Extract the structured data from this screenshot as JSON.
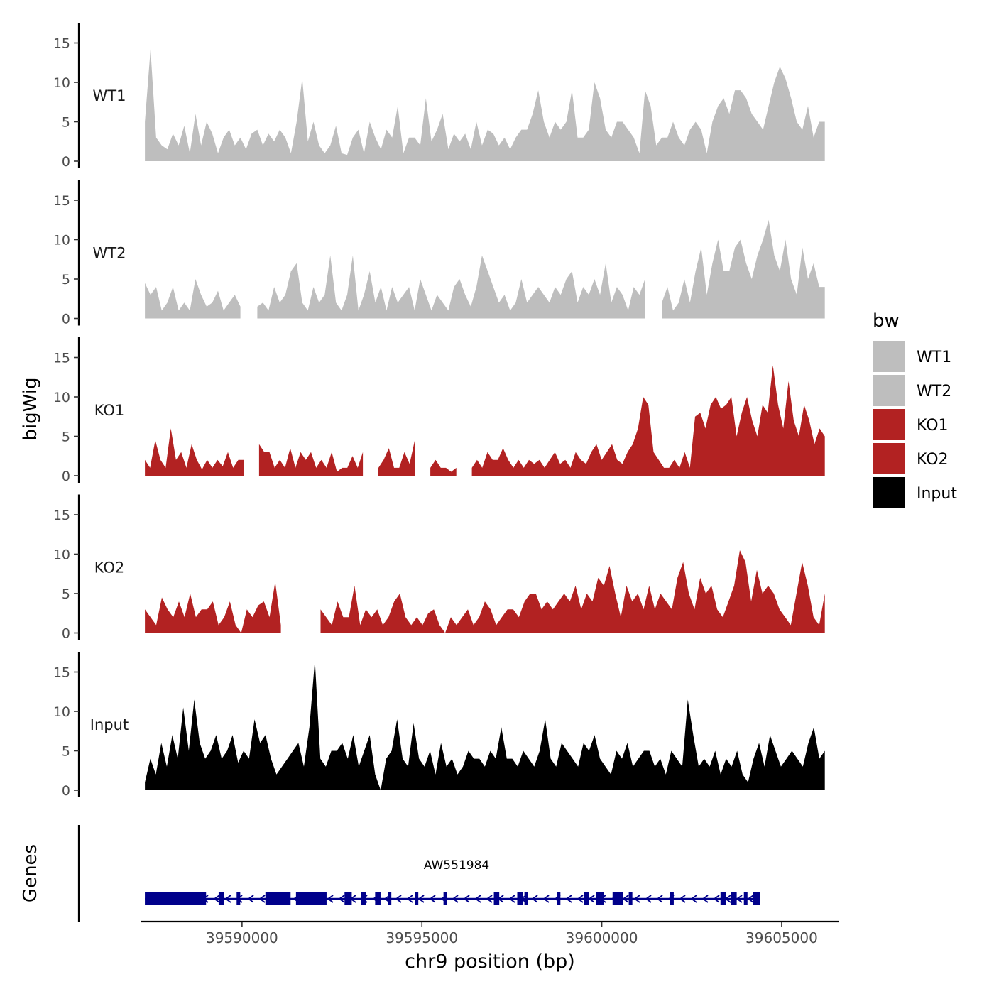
{
  "chart_data": {
    "type": "area",
    "ylabel": "bigWig",
    "xlabel": "chr9 position (bp)",
    "ylim": [
      0,
      17.5
    ],
    "yticks": [
      0,
      5,
      10,
      15
    ],
    "xlim": [
      39587200,
      39606600
    ],
    "xticks": [
      39590000,
      39595000,
      39600000,
      39605000
    ],
    "xtick_labels": [
      "39590000",
      "39595000",
      "39600000",
      "39605000"
    ],
    "track_start": 39587300,
    "track_end": 39606200,
    "legend": {
      "title": "bw",
      "items": [
        {
          "label": "WT1",
          "color": "#bebebe"
        },
        {
          "label": "WT2",
          "color": "#bebebe"
        },
        {
          "label": "KO1",
          "color": "#b22222"
        },
        {
          "label": "KO2",
          "color": "#b22222"
        },
        {
          "label": "Input",
          "color": "#000000"
        }
      ]
    },
    "series": [
      {
        "name": "WT1",
        "color": "#bebebe",
        "values": [
          5,
          14.2,
          3,
          2,
          1.5,
          3.5,
          2,
          4.5,
          1,
          6,
          2,
          5,
          3.5,
          1,
          3,
          4,
          2,
          3,
          1.5,
          3.5,
          4,
          2,
          3.5,
          2.5,
          4,
          3,
          1,
          5,
          10.5,
          2.5,
          5,
          2,
          1,
          2,
          4.5,
          1,
          0.8,
          3,
          4,
          1,
          5,
          3,
          1.5,
          4,
          3,
          7,
          1,
          3,
          3,
          2,
          8,
          2.5,
          4,
          6,
          1.5,
          3.5,
          2.5,
          3.5,
          1.5,
          5,
          2,
          4,
          3.5,
          2,
          3,
          1.5,
          3,
          4,
          4,
          6,
          9,
          5,
          3,
          5,
          4,
          5,
          9,
          3,
          3,
          4,
          10,
          8,
          4,
          3,
          5,
          5,
          4,
          3,
          1,
          9,
          7,
          2,
          3,
          3,
          5,
          3,
          2,
          4,
          5,
          4,
          1,
          5,
          7,
          8,
          6,
          9,
          9,
          8,
          6,
          5,
          4,
          7,
          10,
          12,
          10.5,
          8,
          5,
          4,
          7,
          3,
          5,
          5
        ],
        "gaps": []
      },
      {
        "name": "WT2",
        "color": "#bebebe",
        "values": [
          4.5,
          3,
          4,
          1,
          2,
          4,
          1,
          2,
          1,
          5,
          3,
          1.5,
          2,
          3.5,
          1,
          2,
          3,
          1.5,
          0,
          0,
          1.5,
          2,
          1,
          4,
          2,
          3,
          6,
          7,
          2,
          1,
          4,
          2,
          3,
          8,
          2,
          1,
          3,
          8,
          1,
          3,
          6,
          2,
          4,
          1,
          4,
          2,
          3,
          4,
          1,
          5,
          3,
          1,
          3,
          2,
          1,
          4,
          5,
          3,
          1.5,
          4,
          8,
          6,
          4,
          2,
          3,
          1,
          2,
          5,
          2,
          3,
          4,
          3,
          2,
          4,
          3,
          5,
          6,
          2,
          4,
          3,
          5,
          3,
          7,
          2,
          4,
          3,
          1,
          4,
          3,
          5,
          0,
          0,
          2,
          4,
          1,
          2,
          5,
          2,
          6,
          9,
          3,
          7,
          10,
          6,
          6,
          9,
          10,
          7,
          5,
          8,
          10,
          12.5,
          8,
          6,
          10,
          5,
          3,
          9,
          5,
          7,
          4,
          4
        ],
        "gaps": [
          [
            18,
            19
          ],
          [
            90,
            91
          ]
        ]
      },
      {
        "name": "KO1",
        "color": "#b22222",
        "values": [
          2,
          1,
          4.5,
          2,
          1,
          6,
          2,
          3,
          1,
          4,
          2,
          0.8,
          2,
          1,
          2,
          1.2,
          3,
          1,
          2,
          2,
          0,
          0,
          4,
          3,
          3,
          1,
          2,
          1,
          3.5,
          1,
          3,
          2,
          3,
          1,
          2,
          1,
          3,
          0.5,
          1,
          1,
          2.5,
          1,
          3,
          0,
          0,
          1,
          2,
          3.5,
          1,
          1,
          3,
          1.5,
          4.5,
          0,
          0,
          1,
          2,
          1,
          1,
          0.5,
          1,
          0,
          0,
          1,
          2,
          1,
          3,
          2,
          2,
          3.5,
          2,
          1,
          2,
          1,
          2,
          1.5,
          2,
          1,
          2,
          3,
          1.5,
          2,
          1,
          3,
          2,
          1.5,
          3,
          4,
          2,
          3,
          4,
          2,
          1.5,
          3,
          4,
          6,
          10,
          9,
          3,
          2,
          1,
          1,
          2,
          1,
          3,
          1,
          7.5,
          8,
          6,
          9,
          10,
          8.5,
          9,
          10,
          5,
          8,
          10,
          7,
          5,
          9,
          8,
          14,
          9,
          6,
          12,
          7,
          5,
          9,
          7,
          4,
          6,
          5
        ],
        "gaps": [
          [
            20,
            21
          ],
          [
            43,
            44
          ],
          [
            53,
            54
          ],
          [
            61,
            62
          ]
        ]
      },
      {
        "name": "KO2",
        "color": "#b22222",
        "values": [
          3,
          2,
          1,
          4.5,
          3,
          2,
          4,
          2,
          5,
          2,
          3,
          3,
          4,
          1,
          2,
          4,
          1,
          0,
          3,
          2,
          3.5,
          4,
          2,
          6.5,
          1,
          0.5,
          0,
          0,
          0,
          0,
          0,
          3,
          2,
          1,
          4,
          2,
          2,
          6,
          1,
          3,
          2,
          3,
          1,
          2,
          4,
          5,
          2,
          1,
          2,
          1,
          2.5,
          3,
          1,
          0,
          2,
          1,
          2,
          3,
          1,
          2,
          4,
          3,
          1,
          2,
          3,
          3,
          2,
          4,
          5,
          5,
          3,
          4,
          3,
          4,
          5,
          4,
          6,
          3,
          5,
          4,
          7,
          6,
          8.5,
          5,
          2,
          6,
          4,
          5,
          3,
          6,
          3,
          5,
          4,
          3,
          7,
          9,
          5,
          3,
          7,
          5,
          6,
          3,
          2,
          4,
          6,
          10.5,
          9,
          4,
          8,
          5,
          6,
          5,
          3,
          2,
          1,
          5,
          9,
          6,
          2,
          1,
          5
        ],
        "gaps": [
          [
            25,
            30
          ]
        ]
      },
      {
        "name": "Input",
        "color": "#000000",
        "values": [
          1,
          4,
          2,
          6,
          3,
          7,
          4,
          10.5,
          5,
          11.5,
          6,
          4,
          5,
          7,
          4,
          5,
          7,
          3.5,
          5,
          4,
          9,
          6,
          7,
          4,
          2,
          3,
          4,
          5,
          6,
          3,
          8,
          16.5,
          4,
          3,
          5,
          5,
          6,
          4,
          7,
          3,
          5,
          7,
          2,
          0,
          4,
          5,
          9,
          4,
          3,
          8.5,
          4,
          3,
          5,
          2,
          6,
          3,
          4,
          2,
          3,
          5,
          4,
          4,
          3,
          5,
          4,
          8,
          4,
          4,
          3,
          5,
          4,
          3,
          5,
          9,
          4,
          3,
          6,
          5,
          4,
          3,
          6,
          5,
          7,
          4,
          3,
          2,
          5,
          4,
          6,
          3,
          4,
          5,
          5,
          3,
          4,
          2,
          5,
          4,
          3,
          11.5,
          7,
          3,
          4,
          3,
          5,
          2,
          4,
          3,
          5,
          2,
          1,
          4,
          6,
          3,
          7,
          5,
          3,
          4,
          5,
          4,
          3,
          6,
          8,
          4,
          5
        ],
        "gaps": []
      }
    ],
    "genes": {
      "panel_label": "Genes",
      "name": "AW551984",
      "start": 39587300,
      "end": 39604400,
      "strand": "-",
      "exons": [
        [
          39587300,
          39589000
        ],
        [
          39589350,
          39589500
        ],
        [
          39589850,
          39589950
        ],
        [
          39590650,
          39591350
        ],
        [
          39591500,
          39592350
        ],
        [
          39592850,
          39593050
        ],
        [
          39593300,
          39593450
        ],
        [
          39593700,
          39593850
        ],
        [
          39594050,
          39594150
        ],
        [
          39594800,
          39594900
        ],
        [
          39595600,
          39595700
        ],
        [
          39597000,
          39597150
        ],
        [
          39597650,
          39597800
        ],
        [
          39597850,
          39597950
        ],
        [
          39598750,
          39598850
        ],
        [
          39599500,
          39599650
        ],
        [
          39599850,
          39600050
        ],
        [
          39600300,
          39600600
        ],
        [
          39600750,
          39600850
        ],
        [
          39601900,
          39602000
        ],
        [
          39603300,
          39603450
        ],
        [
          39603600,
          39603750
        ],
        [
          39603950,
          39604050
        ],
        [
          39604200,
          39604400
        ]
      ]
    }
  }
}
